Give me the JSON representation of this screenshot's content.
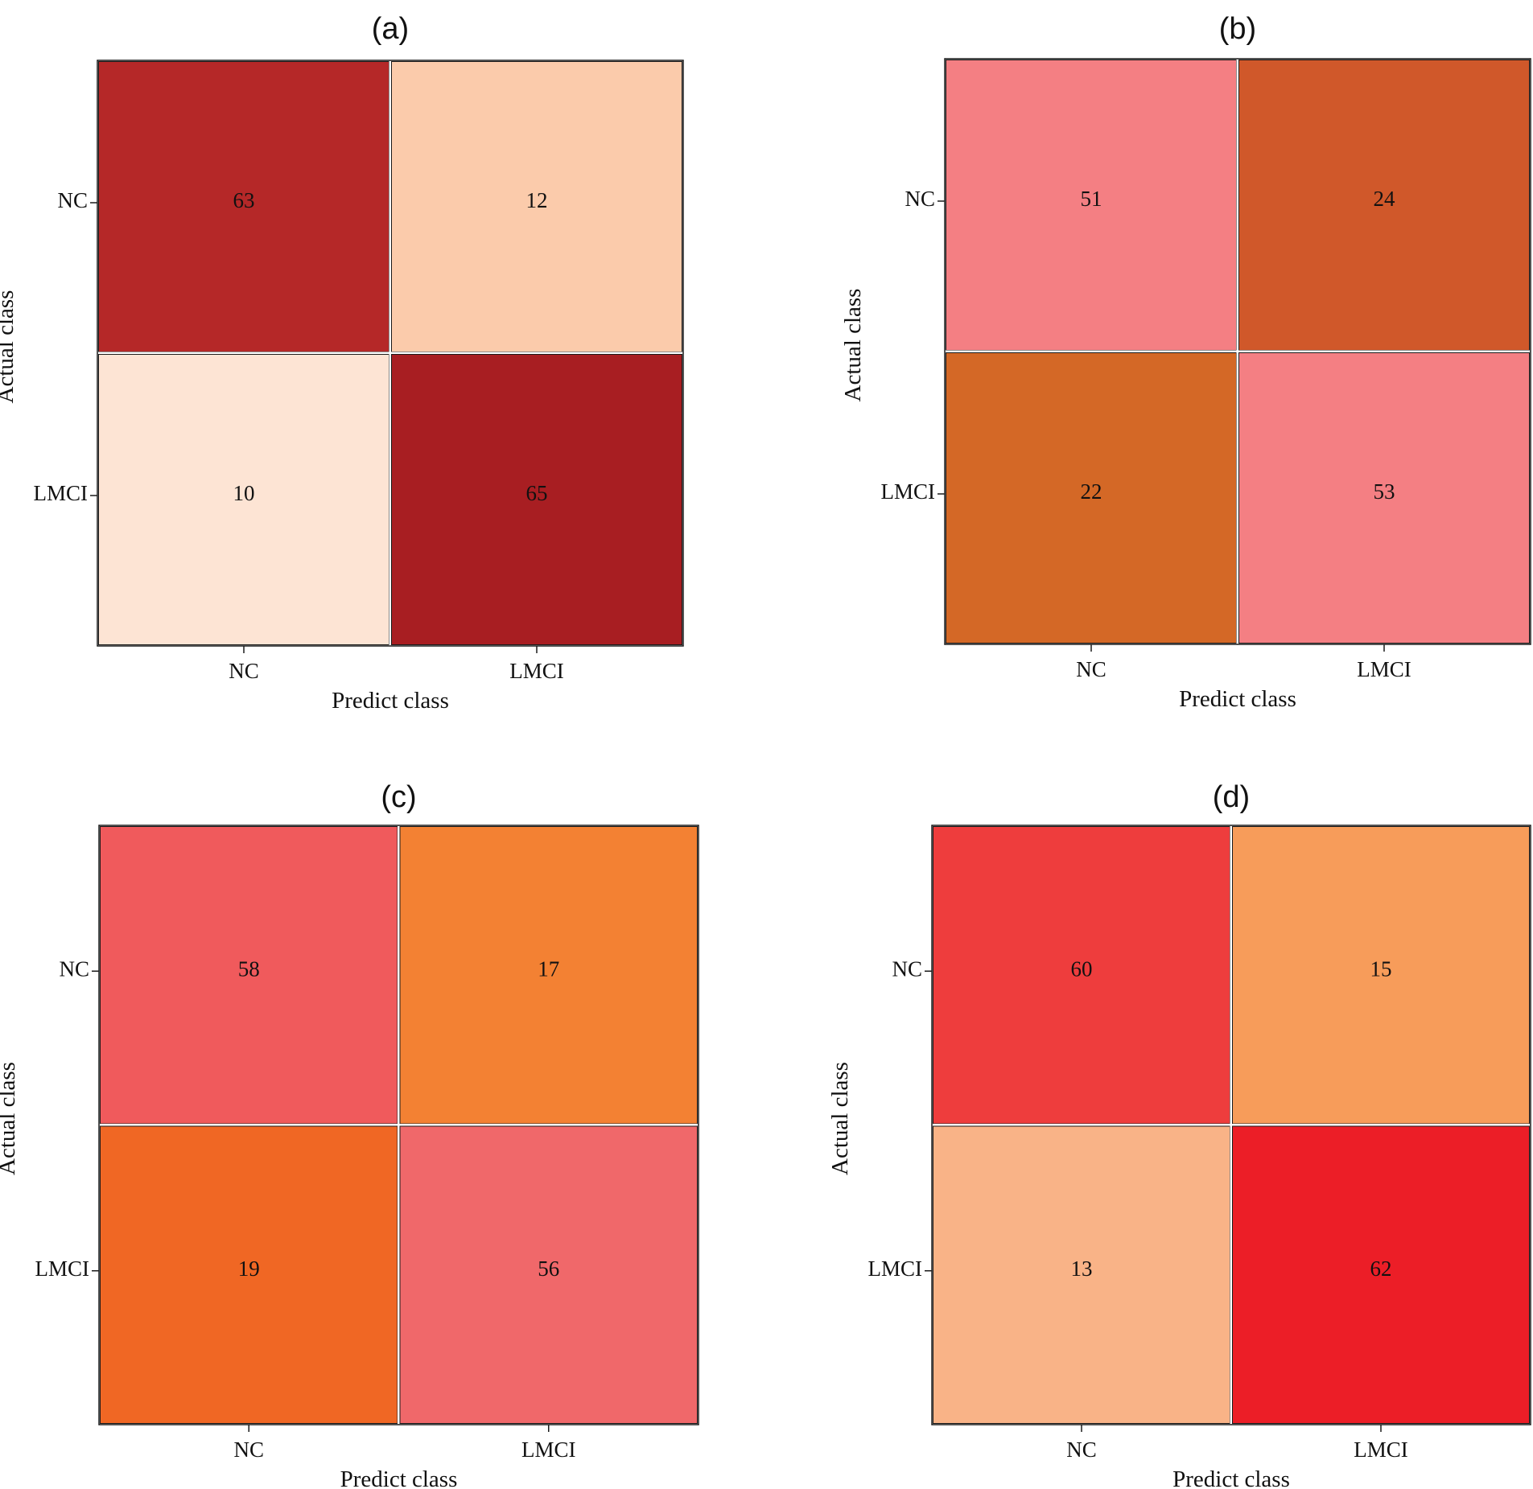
{
  "chart_data": [
    {
      "type": "heatmap",
      "title": "(a)",
      "xlabel": "Predict class",
      "ylabel": "Actual class",
      "x_categories": [
        "NC",
        "LMCI"
      ],
      "y_categories": [
        "NC",
        "LMCI"
      ],
      "values": [
        [
          63,
          12
        ],
        [
          10,
          65
        ]
      ],
      "colors": [
        [
          "#b52828",
          "#fbcbab"
        ],
        [
          "#fde4d4",
          "#a81e22"
        ]
      ]
    },
    {
      "type": "heatmap",
      "title": "(b)",
      "xlabel": "Predict class",
      "ylabel": "Actual class",
      "x_categories": [
        "NC",
        "LMCI"
      ],
      "y_categories": [
        "NC",
        "LMCI"
      ],
      "values": [
        [
          51,
          24
        ],
        [
          22,
          53
        ]
      ],
      "colors": [
        [
          "#f47f83",
          "#d0582a"
        ],
        [
          "#d46826",
          "#f47f83"
        ]
      ]
    },
    {
      "type": "heatmap",
      "title": "(c)",
      "xlabel": "Predict class",
      "ylabel": "Actual class",
      "x_categories": [
        "NC",
        "LMCI"
      ],
      "y_categories": [
        "NC",
        "LMCI"
      ],
      "values": [
        [
          58,
          17
        ],
        [
          19,
          56
        ]
      ],
      "colors": [
        [
          "#f05a5c",
          "#f38133"
        ],
        [
          "#f06724",
          "#f0686a"
        ]
      ]
    },
    {
      "type": "heatmap",
      "title": "(d)",
      "xlabel": "Predict class",
      "ylabel": "Actual class",
      "x_categories": [
        "NC",
        "LMCI"
      ],
      "y_categories": [
        "NC",
        "LMCI"
      ],
      "values": [
        [
          60,
          15
        ],
        [
          13,
          62
        ]
      ],
      "colors": [
        [
          "#ee3d3d",
          "#f79c5a"
        ],
        [
          "#f9b387",
          "#ec1e27"
        ]
      ]
    }
  ]
}
